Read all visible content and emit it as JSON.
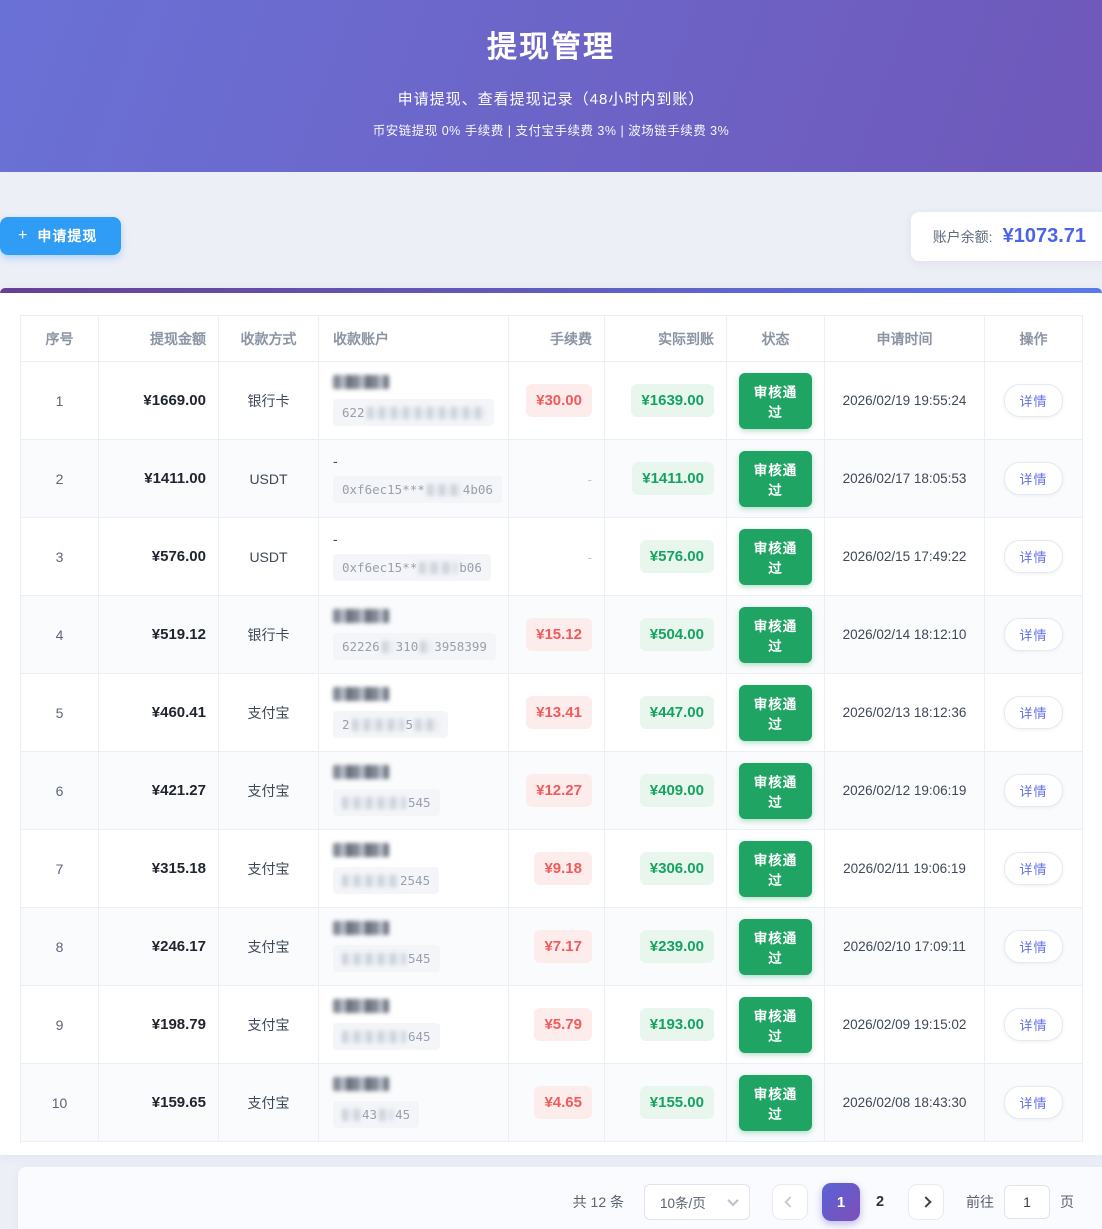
{
  "colors": {
    "header_gradient_left": "#6a71d6",
    "header_gradient_right": "#6f58b9",
    "accent_blue_button": "#2f9cf5",
    "balance_blue": "#4c63ea",
    "status_green": "#1fa463",
    "arrival_green_text": "#16a361",
    "fee_red_text": "#f15b5b",
    "active_page_gradient": [
      "#5a62d8",
      "#7e4fb6"
    ]
  },
  "header": {
    "title": "提现管理",
    "subtitle": "申请提现、查看提现记录（48小时内到账）",
    "fee_note": "币安链提现 0% 手续费 | 支付宝手续费 3% | 波场链手续费 3%"
  },
  "toolbar": {
    "plus_icon": "+",
    "apply_label": "申请提现",
    "balance_label": "账户余额:",
    "balance_value": "¥1073.71"
  },
  "table": {
    "columns": [
      "序号",
      "提现金额",
      "收款方式",
      "收款账户",
      "手续费",
      "实际到账",
      "状态",
      "申请时间",
      "操作"
    ],
    "rows": [
      {
        "no": "1",
        "amount": "¥1669.00",
        "method": "银行卡",
        "account": {
          "line1": "blob",
          "segments": [
            {
              "t": "622"
            },
            {
              "b": 118
            }
          ]
        },
        "fee": "¥30.00",
        "arrival": "¥1639.00",
        "status": "审核通过",
        "time": "2026/02/19 19:55:24",
        "action": "详情"
      },
      {
        "no": "2",
        "amount": "¥1411.00",
        "method": "USDT",
        "account": {
          "line1": "-",
          "segments": [
            {
              "t": "0xf6ec15***"
            },
            {
              "b": 34
            },
            {
              "t": "4b06"
            }
          ]
        },
        "fee": "-",
        "arrival": "¥1411.00",
        "status": "审核通过",
        "time": "2026/02/17 18:05:53",
        "action": "详情"
      },
      {
        "no": "3",
        "amount": "¥576.00",
        "method": "USDT",
        "account": {
          "line1": "-",
          "segments": [
            {
              "t": "0xf6ec15**"
            },
            {
              "b": 38
            },
            {
              "t": "b06"
            }
          ]
        },
        "fee": "-",
        "arrival": "¥576.00",
        "status": "审核通过",
        "time": "2026/02/15 17:49:22",
        "action": "详情"
      },
      {
        "no": "4",
        "amount": "¥519.12",
        "method": "银行卡",
        "account": {
          "line1": "blob",
          "segments": [
            {
              "t": "62226"
            },
            {
              "b": 12
            },
            {
              "t": "310"
            },
            {
              "b": 12
            },
            {
              "t": "3958399"
            }
          ]
        },
        "fee": "¥15.12",
        "arrival": "¥504.00",
        "status": "审核通过",
        "time": "2026/02/14 18:12:10",
        "action": "详情"
      },
      {
        "no": "5",
        "amount": "¥460.41",
        "method": "支付宝",
        "account": {
          "line1": "blob",
          "segments": [
            {
              "t": "2"
            },
            {
              "b": 52
            },
            {
              "t": "5"
            },
            {
              "b": 24
            }
          ]
        },
        "fee": "¥13.41",
        "arrival": "¥447.00",
        "status": "审核通过",
        "time": "2026/02/13 18:12:36",
        "action": "详情"
      },
      {
        "no": "6",
        "amount": "¥421.27",
        "method": "支付宝",
        "account": {
          "line1": "blob",
          "segments": [
            {
              "b": 64
            },
            {
              "t": "545"
            }
          ]
        },
        "fee": "¥12.27",
        "arrival": "¥409.00",
        "status": "审核通过",
        "time": "2026/02/12 19:06:19",
        "action": "详情"
      },
      {
        "no": "7",
        "amount": "¥315.18",
        "method": "支付宝",
        "account": {
          "line1": "blob",
          "segments": [
            {
              "b": 56
            },
            {
              "t": "2545"
            }
          ]
        },
        "fee": "¥9.18",
        "arrival": "¥306.00",
        "status": "审核通过",
        "time": "2026/02/11 19:06:19",
        "action": "详情"
      },
      {
        "no": "8",
        "amount": "¥246.17",
        "method": "支付宝",
        "account": {
          "line1": "blob",
          "segments": [
            {
              "b": 64
            },
            {
              "t": "545"
            }
          ]
        },
        "fee": "¥7.17",
        "arrival": "¥239.00",
        "status": "审核通过",
        "time": "2026/02/10 17:09:11",
        "action": "详情"
      },
      {
        "no": "9",
        "amount": "¥198.79",
        "method": "支付宝",
        "account": {
          "line1": "blob",
          "segments": [
            {
              "b": 64
            },
            {
              "t": "645"
            }
          ]
        },
        "fee": "¥5.79",
        "arrival": "¥193.00",
        "status": "审核通过",
        "time": "2026/02/09 19:15:02",
        "action": "详情"
      },
      {
        "no": "10",
        "amount": "¥159.65",
        "method": "支付宝",
        "account": {
          "line1": "blob",
          "segments": [
            {
              "b": 18
            },
            {
              "t": "43"
            },
            {
              "b": 14
            },
            {
              "t": "45"
            }
          ]
        },
        "fee": "¥4.65",
        "arrival": "¥155.00",
        "status": "审核通过",
        "time": "2026/02/08 18:43:30",
        "action": "详情"
      }
    ]
  },
  "pagination": {
    "total_text": "共 12 条",
    "page_size": "10条/页",
    "pages": [
      "1",
      "2"
    ],
    "active_page": "1",
    "goto_label": "前往",
    "goto_value": "1",
    "goto_unit": "页"
  }
}
